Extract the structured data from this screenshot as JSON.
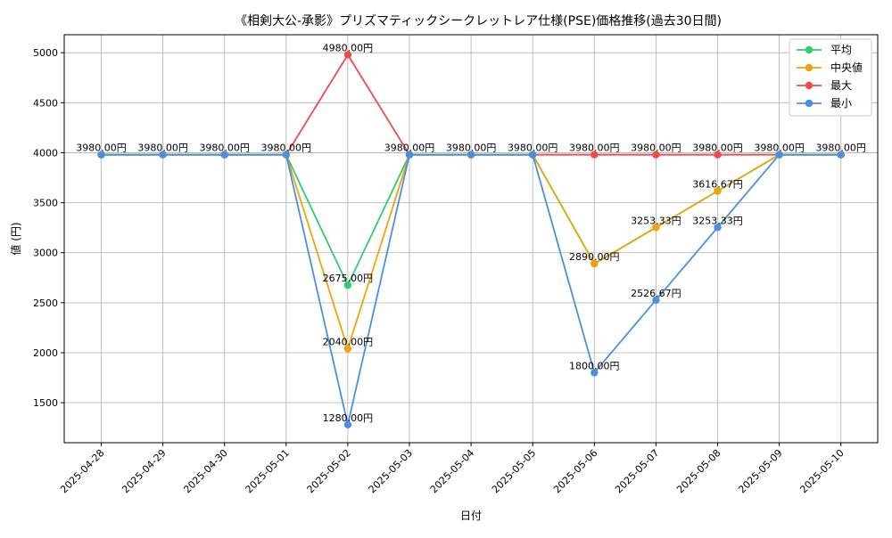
{
  "chart_data": {
    "type": "line",
    "title": "《相剣大公-承影》プリズマティックシークレットレア仕様(PSE)価格推移(過去30日間)",
    "xlabel": "日付",
    "ylabel": "値 (円)",
    "ylim": [
      1100,
      5180
    ],
    "yticks": [
      1500,
      2000,
      2500,
      3000,
      3500,
      4000,
      4500,
      5000
    ],
    "grid": true,
    "legend_position": "upper-right",
    "categories": [
      "2025-04-28",
      "2025-04-29",
      "2025-04-30",
      "2025-05-01",
      "2025-05-02",
      "2025-05-03",
      "2025-05-04",
      "2025-05-05",
      "2025-05-06",
      "2025-05-07",
      "2025-05-08",
      "2025-05-09",
      "2025-05-10"
    ],
    "series": [
      {
        "key": "avg",
        "name": "平均",
        "color": "#2ecc71",
        "values": [
          3980,
          3980,
          3980,
          3980,
          2675,
          3980,
          3980,
          3980,
          2890,
          3253.33,
          3616.67,
          3980,
          3980
        ]
      },
      {
        "key": "median",
        "name": "中央値",
        "color": "#f0a30a",
        "values": [
          3980,
          3980,
          3980,
          3980,
          2040,
          3980,
          3980,
          3980,
          2890,
          3253.33,
          3616.67,
          3980,
          3980
        ]
      },
      {
        "key": "max",
        "name": "最大",
        "color": "#ef4b4b",
        "values": [
          3980,
          3980,
          3980,
          3980,
          4980,
          3980,
          3980,
          3980,
          3980,
          3980,
          3980,
          3980,
          3980
        ]
      },
      {
        "key": "min",
        "name": "最小",
        "color": "#4a90e2",
        "values": [
          3980,
          3980,
          3980,
          3980,
          1280,
          3980,
          3980,
          3980,
          1800,
          2526.67,
          3253.33,
          3980,
          3980
        ]
      }
    ],
    "annotations": [
      {
        "index": 0,
        "value": 3980,
        "text": "3980.00円"
      },
      {
        "index": 1,
        "value": 3980,
        "text": "3980.00円"
      },
      {
        "index": 2,
        "value": 3980,
        "text": "3980.00円"
      },
      {
        "index": 3,
        "value": 3980,
        "text": "3980.00円"
      },
      {
        "index": 4,
        "value": 4980,
        "text": "4980.00円"
      },
      {
        "index": 4,
        "value": 2675,
        "text": "2675.00円"
      },
      {
        "index": 4,
        "value": 2040,
        "text": "2040.00円"
      },
      {
        "index": 4,
        "value": 1280,
        "text": "1280.00円"
      },
      {
        "index": 5,
        "value": 3980,
        "text": "3980.00円"
      },
      {
        "index": 6,
        "value": 3980,
        "text": "3980.00円"
      },
      {
        "index": 7,
        "value": 3980,
        "text": "3980.00円"
      },
      {
        "index": 8,
        "value": 3980,
        "text": "3980.00円"
      },
      {
        "index": 8,
        "value": 2890,
        "text": "2890.00円"
      },
      {
        "index": 8,
        "value": 1800,
        "text": "1800.00円"
      },
      {
        "index": 9,
        "value": 3980,
        "text": "3980.00円"
      },
      {
        "index": 9,
        "value": 3253.33,
        "text": "3253.33円"
      },
      {
        "index": 9,
        "value": 2526.67,
        "text": "2526.67円"
      },
      {
        "index": 10,
        "value": 3980,
        "text": "3980.00円"
      },
      {
        "index": 10,
        "value": 3616.67,
        "text": "3616.67円"
      },
      {
        "index": 10,
        "value": 3253.33,
        "text": "3253.33円"
      },
      {
        "index": 11,
        "value": 3980,
        "text": "3980.00円"
      },
      {
        "index": 12,
        "value": 3980,
        "text": "3980.00円"
      }
    ]
  }
}
